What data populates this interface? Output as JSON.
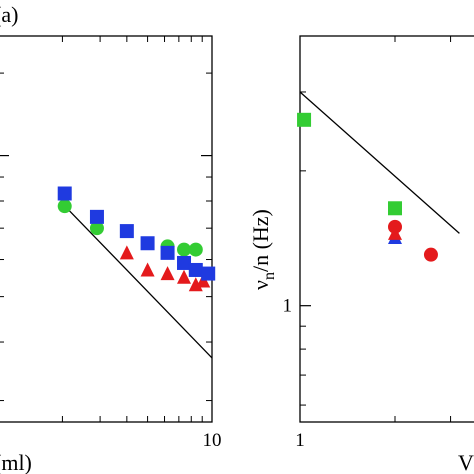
{
  "figure": {
    "panel_label": "(a)"
  },
  "chart_data": [
    {
      "type": "scatter",
      "panel": "(a)",
      "xscale": "log",
      "yscale": "log",
      "x_tick_labels": [
        {
          "value": 10,
          "label": "10"
        }
      ],
      "xlabel_visible": "(ml)",
      "series": [
        {
          "color": "#e41a1c",
          "marker": "triangle",
          "points": [
            [
              4.0,
              0.62
            ],
            [
              5.0,
              0.57
            ],
            [
              6.2,
              0.56
            ],
            [
              7.4,
              0.55
            ],
            [
              8.4,
              0.53
            ],
            [
              9.1,
              0.54
            ]
          ]
        },
        {
          "color": "#33cc33",
          "marker": "circle",
          "points": [
            [
              2.05,
              0.78
            ],
            [
              2.9,
              0.7
            ],
            [
              6.2,
              0.64
            ],
            [
              7.4,
              0.63
            ],
            [
              8.4,
              0.63
            ]
          ]
        },
        {
          "color": "#1f3ae0",
          "marker": "square",
          "points": [
            [
              2.05,
              0.83
            ],
            [
              2.9,
              0.74
            ],
            [
              4.0,
              0.69
            ],
            [
              5.0,
              0.65
            ],
            [
              6.2,
              0.62
            ],
            [
              7.4,
              0.59
            ],
            [
              8.4,
              0.57
            ],
            [
              9.6,
              0.56
            ]
          ]
        }
      ],
      "fit_line": {
        "points": [
          [
            2.0,
            0.79
          ],
          [
            10.0,
            0.37
          ]
        ]
      }
    },
    {
      "type": "scatter",
      "xscale": "log",
      "yscale": "log",
      "ylabel": "ν_n/n (Hz)",
      "ylabel_visible": "νn/n (Hz)",
      "x_tick_labels": [
        {
          "value": 1,
          "label": "1"
        }
      ],
      "y_tick_labels": [
        {
          "value": 1,
          "label": "1"
        }
      ],
      "xlabel_visible": "V",
      "series": [
        {
          "color": "#33cc33",
          "marker": "square",
          "points": [
            [
              1.03,
              2.6
            ],
            [
              2.0,
              1.65
            ]
          ]
        },
        {
          "color": "#e41a1c",
          "marker": "circle",
          "points": [
            [
              2.0,
              1.5
            ],
            [
              2.6,
              1.3
            ]
          ]
        },
        {
          "color": "#1f3ae0",
          "marker": "triangle",
          "points": [
            [
              2.0,
              1.42
            ]
          ]
        },
        {
          "color": "#e41a1c",
          "marker": "triangle",
          "points": [
            [
              2.0,
              1.45
            ]
          ]
        }
      ],
      "fit_line": {
        "points": [
          [
            1.0,
            3.0
          ],
          [
            3.2,
            1.45
          ]
        ]
      }
    }
  ]
}
